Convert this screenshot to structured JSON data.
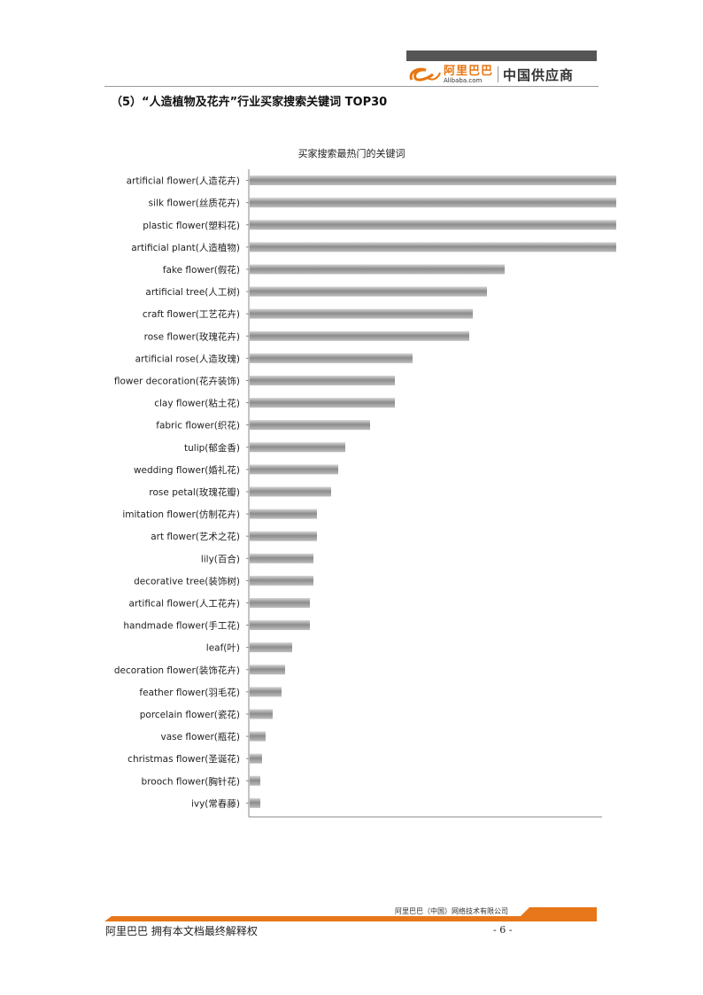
{
  "header": {
    "logo_cn": "阿里巴巴",
    "logo_en": "Alibaba.com",
    "logo_supplier": "中国供应商"
  },
  "section_title": "（5）“人造植物及花卉”行业买家搜索关键词 TOP30",
  "chart_data": {
    "type": "bar",
    "orientation": "horizontal",
    "title": "买家搜索最热门的关键词",
    "xlabel": "",
    "ylabel": "",
    "grid": false,
    "legend": "none",
    "xlim": [
      0,
      100
    ],
    "note_truncated": true,
    "categories": [
      "artificial flower(人造花卉)",
      "silk flower(丝质花卉)",
      "plastic flower(塑料花)",
      "artificial plant(人造植物)",
      "fake flower(假花)",
      "artificial tree(人工树)",
      "craft flower(工艺花卉)",
      "rose flower(玫瑰花卉)",
      "artificial rose(人造玫瑰)",
      "flower decoration(花卉装饰)",
      "clay flower(粘土花)",
      "fabric flower(织花)",
      "tulip(郁金香)",
      "wedding flower(婚礼花)",
      "rose petal(玫瑰花瓣)",
      "imitation flower(仿制花卉)",
      "art flower(艺术之花)",
      "lily(百合)",
      "decorative tree(装饰树)",
      "artifical flower(人工花卉)",
      "handmade flower(手工花)",
      "leaf(叶)",
      "decoration flower(装饰花卉)",
      "feather flower(羽毛花)",
      "porcelain flower(瓷花)",
      "vase flower(瓶花)",
      "christmas flower(圣诞花)",
      "brooch flower(胸针花)",
      "ivy(常春藤)"
    ],
    "values": [
      104,
      104,
      104,
      104,
      72,
      67,
      63,
      62,
      46,
      41,
      41,
      34,
      27,
      25,
      23,
      19,
      19,
      18,
      18,
      17,
      17,
      12,
      10,
      9,
      6.5,
      4.5,
      3.5,
      3,
      3
    ],
    "bar_color": "#9a9a9a"
  },
  "footer": {
    "company": "阿里巴巴（中国）网络技术有限公司",
    "rights": "阿里巴巴  拥有本文档最终解释权",
    "page": "- 6 -",
    "accent": "#e8761a"
  }
}
